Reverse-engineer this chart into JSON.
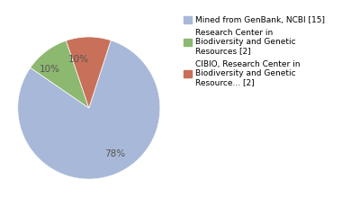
{
  "slices": [
    78,
    10,
    10
  ],
  "colors": [
    "#a8b8d8",
    "#8db870",
    "#c8705a"
  ],
  "pct_labels": [
    "78%",
    "10%",
    "10%"
  ],
  "legend_labels": [
    "Mined from GenBank, NCBI [15]",
    "Research Center in\nBiodiversity and Genetic\nResources [2]",
    "CIBIO, Research Center in\nBiodiversity and Genetic\nResource... [2]"
  ],
  "pct_colors": [
    "#555555",
    "#555555",
    "#555555"
  ],
  "startangle": 72,
  "figsize": [
    3.8,
    2.4
  ],
  "dpi": 100
}
